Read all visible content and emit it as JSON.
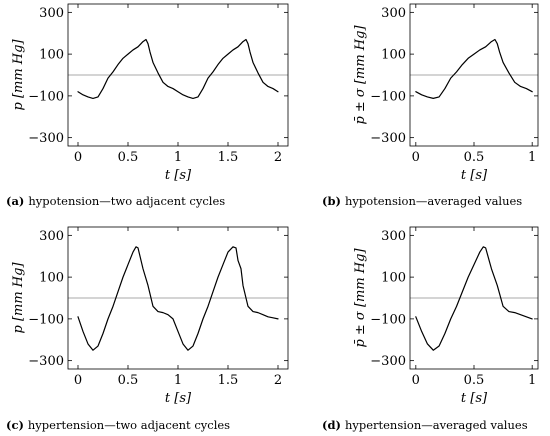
{
  "chart_data": [
    {
      "type": "line",
      "caption_id": "(a)",
      "caption": "hypotension—two adjacent cycles",
      "xlabel": "t  [s]",
      "ylabel": "p  [mm Hg]",
      "xlim": [
        -0.1,
        2.1
      ],
      "ylim": [
        -340,
        340
      ],
      "xticks": [
        0,
        0.5,
        1,
        1.5,
        2
      ],
      "xtick_labels": [
        "0",
        "0.5",
        "1",
        "1.5",
        "2"
      ],
      "yticks": [
        -300,
        -100,
        100,
        300
      ],
      "ytick_labels": [
        "−300",
        "−100",
        "100",
        "300"
      ],
      "reference_line_y": 0,
      "series": [
        {
          "x": [
            0,
            0.05,
            0.1,
            0.15,
            0.2,
            0.25,
            0.3,
            0.35,
            0.4,
            0.45,
            0.5,
            0.55,
            0.6,
            0.65,
            0.68,
            0.7,
            0.72,
            0.75,
            0.8,
            0.85,
            0.9,
            0.95,
            1.0,
            1.05,
            1.1,
            1.15,
            1.2,
            1.25,
            1.3,
            1.35,
            1.4,
            1.45,
            1.5,
            1.55,
            1.6,
            1.65,
            1.68,
            1.7,
            1.72,
            1.75,
            1.8,
            1.85,
            1.9,
            1.95,
            2.0
          ],
          "y": [
            -80,
            -95,
            -105,
            -112,
            -105,
            -65,
            -15,
            15,
            50,
            80,
            100,
            120,
            135,
            160,
            170,
            150,
            110,
            60,
            10,
            -35,
            -55,
            -65,
            -80,
            -95,
            -105,
            -112,
            -105,
            -65,
            -15,
            15,
            50,
            80,
            100,
            120,
            135,
            160,
            170,
            150,
            110,
            60,
            10,
            -35,
            -55,
            -65,
            -80
          ]
        }
      ]
    },
    {
      "type": "line",
      "caption_id": "(b)",
      "caption": "hypotension—averaged values",
      "xlabel": "t  [s]",
      "ylabel": "p̄ ± σ  [mm Hg]",
      "xlim": [
        -0.05,
        1.05
      ],
      "ylim": [
        -340,
        340
      ],
      "xticks": [
        0,
        0.5,
        1
      ],
      "xtick_labels": [
        "0",
        "0.5",
        "1"
      ],
      "yticks": [
        -300,
        -100,
        100,
        300
      ],
      "ytick_labels": [
        "−300",
        "−100",
        "100",
        "300"
      ],
      "reference_line_y": 0,
      "series": [
        {
          "x": [
            0,
            0.05,
            0.1,
            0.15,
            0.2,
            0.25,
            0.3,
            0.35,
            0.4,
            0.45,
            0.5,
            0.55,
            0.6,
            0.65,
            0.68,
            0.7,
            0.72,
            0.75,
            0.8,
            0.85,
            0.9,
            0.95,
            1.0
          ],
          "y": [
            -80,
            -95,
            -105,
            -112,
            -105,
            -65,
            -15,
            15,
            50,
            80,
            100,
            120,
            135,
            160,
            170,
            150,
            110,
            60,
            10,
            -35,
            -55,
            -65,
            -80
          ]
        }
      ]
    },
    {
      "type": "line",
      "caption_id": "(c)",
      "caption": "hypertension—two adjacent cycles",
      "xlabel": "t  [s]",
      "ylabel": "p  [mm Hg]",
      "xlim": [
        -0.1,
        2.1
      ],
      "ylim": [
        -340,
        340
      ],
      "xticks": [
        0,
        0.5,
        1,
        1.5,
        2
      ],
      "xtick_labels": [
        "0",
        "0.5",
        "1",
        "1.5",
        "2"
      ],
      "yticks": [
        -300,
        -100,
        100,
        300
      ],
      "ytick_labels": [
        "−300",
        "−100",
        "100",
        "300"
      ],
      "reference_line_y": 0,
      "series": [
        {
          "x": [
            0,
            0.05,
            0.1,
            0.15,
            0.2,
            0.25,
            0.3,
            0.35,
            0.4,
            0.45,
            0.5,
            0.55,
            0.58,
            0.6,
            0.63,
            0.65,
            0.7,
            0.75,
            0.8,
            0.85,
            0.9,
            0.95,
            1.0,
            1.05,
            1.1,
            1.15,
            1.2,
            1.25,
            1.3,
            1.35,
            1.4,
            1.45,
            1.5,
            1.55,
            1.58,
            1.6,
            1.63,
            1.65,
            1.7,
            1.75,
            1.8,
            1.85,
            1.9,
            1.95,
            2.0
          ],
          "y": [
            -90,
            -160,
            -220,
            -250,
            -230,
            -170,
            -100,
            -40,
            30,
            100,
            160,
            220,
            245,
            240,
            180,
            140,
            60,
            -40,
            -65,
            -70,
            -80,
            -100,
            -160,
            -220,
            -250,
            -230,
            -170,
            -100,
            -40,
            30,
            100,
            160,
            220,
            245,
            240,
            180,
            140,
            60,
            -40,
            -65,
            -70,
            -80,
            -90,
            -95,
            -100
          ]
        }
      ]
    },
    {
      "type": "line",
      "caption_id": "(d)",
      "caption": "hypertension—averaged values",
      "xlabel": "t  [s]",
      "ylabel": "p̄ ± σ  [mm Hg]",
      "xlim": [
        -0.05,
        1.05
      ],
      "ylim": [
        -340,
        340
      ],
      "xticks": [
        0,
        0.5,
        1
      ],
      "xtick_labels": [
        "0",
        "0.5",
        "1"
      ],
      "yticks": [
        -300,
        -100,
        100,
        300
      ],
      "ytick_labels": [
        "−300",
        "−100",
        "100",
        "300"
      ],
      "reference_line_y": 0,
      "series": [
        {
          "x": [
            0,
            0.05,
            0.1,
            0.15,
            0.2,
            0.25,
            0.3,
            0.35,
            0.4,
            0.45,
            0.5,
            0.55,
            0.58,
            0.6,
            0.63,
            0.65,
            0.7,
            0.75,
            0.8,
            0.85,
            0.9,
            0.95,
            1.0
          ],
          "y": [
            -90,
            -160,
            -220,
            -250,
            -230,
            -170,
            -100,
            -40,
            30,
            100,
            160,
            220,
            245,
            240,
            180,
            140,
            60,
            -40,
            -65,
            -70,
            -80,
            -90,
            -100
          ]
        }
      ]
    }
  ],
  "colors": {
    "curve": "#000000",
    "reference_line": "#a8a8a8",
    "axis": "#000000"
  }
}
